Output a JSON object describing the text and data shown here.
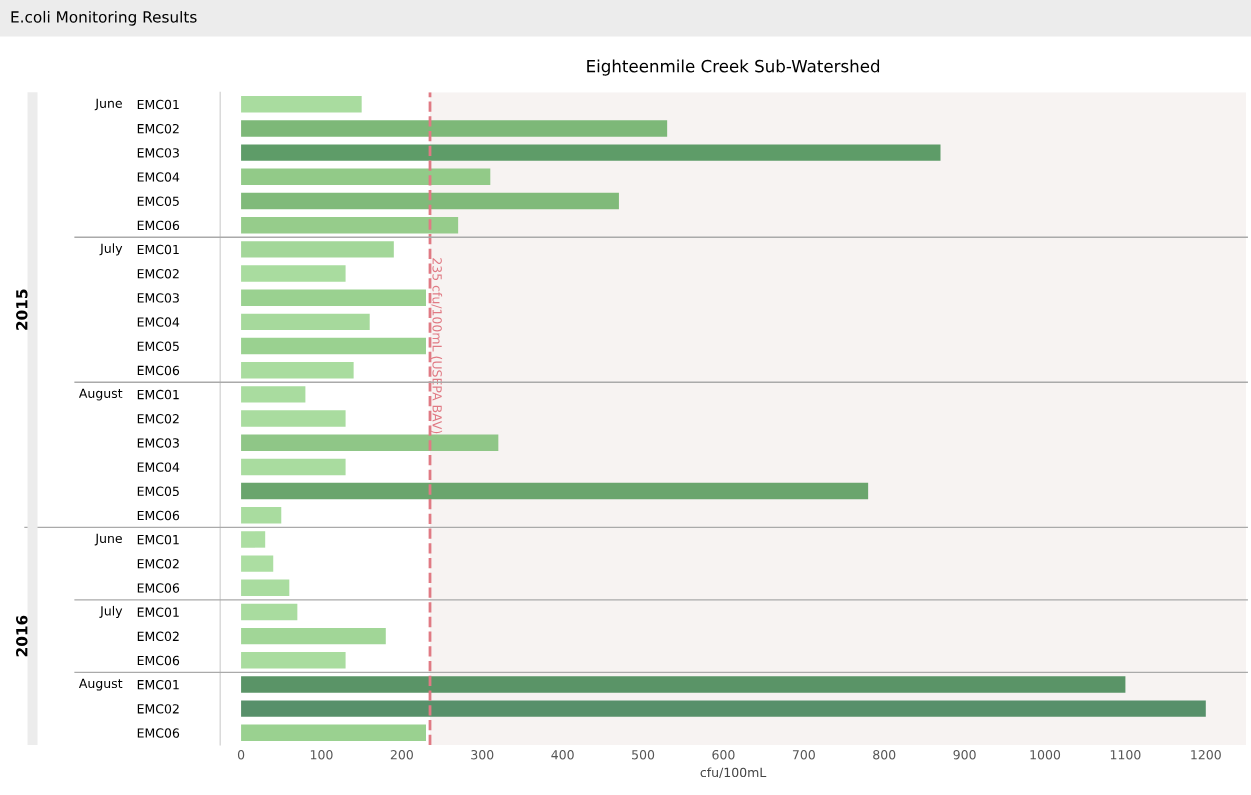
{
  "chart_data": {
    "type": "bar",
    "orientation": "horizontal",
    "title": "E.coli Monitoring Results",
    "subtitle": "Eighteenmile Creek Sub-Watershed",
    "xlabel": "cfu/100mL",
    "categories": [
      "EMC01",
      "EMC02",
      "EMC03",
      "EMC04",
      "EMC05",
      "EMC06",
      "EMC01",
      "EMC02",
      "EMC03",
      "EMC04",
      "EMC05",
      "EMC06",
      "EMC01",
      "EMC02",
      "EMC03",
      "EMC04",
      "EMC05",
      "EMC06",
      "EMC01",
      "EMC02",
      "EMC06",
      "EMC01",
      "EMC02",
      "EMC06",
      "EMC01",
      "EMC02",
      "EMC06"
    ],
    "values": [
      150,
      530,
      870,
      310,
      470,
      270,
      190,
      130,
      230,
      160,
      230,
      140,
      80,
      130,
      320,
      130,
      780,
      50,
      30,
      40,
      60,
      70,
      180,
      130,
      1100,
      1200,
      230
    ],
    "colors": [
      "#a9dc9f",
      "#7db878",
      "#5e9c68",
      "#92ca88",
      "#80ba7a",
      "#96cc8b",
      "#a3d799",
      "#a9dc9f",
      "#9ad190",
      "#a6d99c",
      "#9ad190",
      "#a9dc9f",
      "#a9dc9f",
      "#a9dc9f",
      "#8fc687",
      "#a9dc9f",
      "#6aa56d",
      "#a9dc9f",
      "#acdea2",
      "#acdea2",
      "#a9dc9f",
      "#a9dc9f",
      "#a1d697",
      "#a9dc9f",
      "#5a9467",
      "#57906a",
      "#9ad190"
    ],
    "annotations": [
      "2015",
      "2016",
      "June",
      "July",
      "August",
      "June",
      "July",
      "August"
    ],
    "xlim": [
      -26,
      1250
    ],
    "xticks": [
      0,
      100,
      200,
      300,
      400,
      500,
      600,
      700,
      800,
      900,
      1000,
      1100,
      1200
    ],
    "ref_lines": [
      {
        "axis": "x",
        "value": 235,
        "label": "235 cfu/100mL (USEPA BAV)",
        "color": "#e07a84",
        "line_style": "dashed"
      }
    ],
    "bands": [
      {
        "axis": "x",
        "from": 235,
        "to": 1250,
        "color": "#f7f3f2"
      }
    ],
    "grid": false
  }
}
